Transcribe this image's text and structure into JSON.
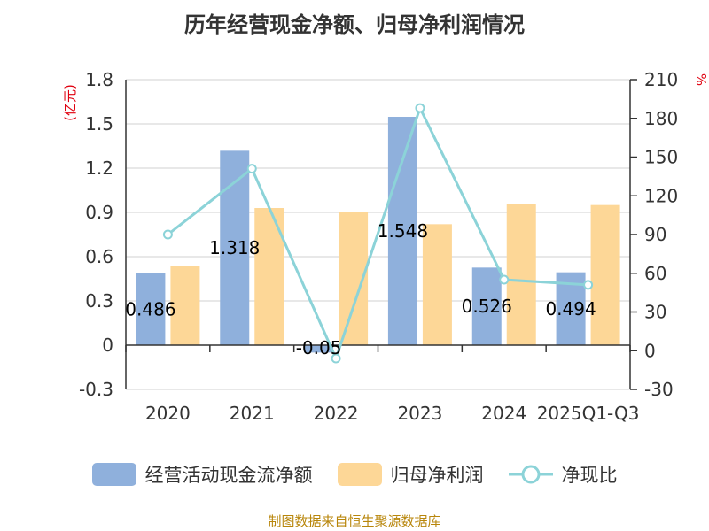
{
  "chart_data": {
    "type": "bar",
    "title": "历年经营现金净额、归母净利润情况",
    "categories": [
      "2020",
      "2021",
      "2022",
      "2023",
      "2024",
      "2025Q1-Q3"
    ],
    "series": [
      {
        "name": "经营活动现金流净额",
        "type": "bar",
        "axis": "left",
        "color": "#8fb0dc",
        "values": [
          0.486,
          1.318,
          -0.05,
          1.548,
          0.526,
          0.494
        ],
        "labels": [
          "0.486",
          "1.318",
          "-0.05",
          "1.548",
          "0.526",
          "0.494"
        ]
      },
      {
        "name": "归母净利润",
        "type": "bar",
        "axis": "left",
        "color": "#fdd797",
        "values": [
          0.54,
          0.93,
          0.9,
          0.82,
          0.96,
          0.95
        ]
      },
      {
        "name": "净现比",
        "type": "line",
        "axis": "right",
        "color": "#8cd3d8",
        "values": [
          90,
          141,
          -6,
          188,
          55,
          51
        ]
      }
    ],
    "left_axis": {
      "unit": "(亿元)",
      "ylim": [
        -0.3,
        1.8
      ],
      "ticks": [
        "1.8",
        "1.5",
        "1.2",
        "0.9",
        "0.6",
        "0.3",
        "0",
        "-0.3"
      ]
    },
    "right_axis": {
      "unit": "%",
      "ylim": [
        -30,
        210
      ],
      "ticks": [
        "210",
        "180",
        "150",
        "120",
        "90",
        "60",
        "30",
        "0",
        "-30"
      ]
    },
    "grid": true,
    "legend_position": "bottom"
  },
  "source": "制图数据来自恒生聚源数据库"
}
